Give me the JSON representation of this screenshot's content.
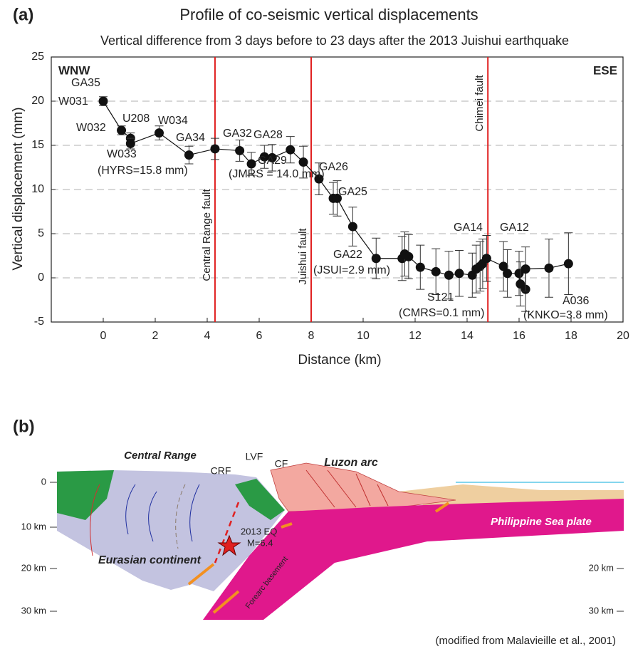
{
  "panel_labels": [
    "(a)",
    "(b)"
  ],
  "chart_data": {
    "type": "scatter-line",
    "title": "Profile of co-seismic vertical displacements",
    "subtitle": "Vertical difference from 3 days before to 23 days after the 2013 Juishui earthquake",
    "x_label": "Distance (km)",
    "y_label": "Vertical displacement (mm)",
    "xlim": [
      -2,
      20
    ],
    "ylim": [
      -5,
      25
    ],
    "xticks": [
      0,
      2,
      4,
      6,
      8,
      10,
      12,
      14,
      16,
      18,
      20
    ],
    "yticks": [
      -5,
      0,
      5,
      10,
      15,
      20,
      25
    ],
    "grid": true,
    "corner_labels": [
      "WNW",
      "ESE"
    ],
    "faults": [
      {
        "x": 4.3,
        "label": "Central Range fault"
      },
      {
        "x": 8.0,
        "label": "Juishui fault"
      },
      {
        "x": 14.8,
        "label": "Chimei fault"
      }
    ],
    "fault_color": "#e02020",
    "series": [
      {
        "color": "#111111",
        "x": [
          0,
          0.7,
          1.05,
          1.05,
          2.15,
          3.3,
          4.3,
          5.25,
          5.7,
          6.2,
          6.5,
          7.2,
          7.7,
          8.3,
          8.85,
          9.0,
          9.6,
          10.5,
          11.5,
          11.6,
          11.75,
          12.2,
          12.8,
          13.3,
          13.7,
          14.2,
          14.35,
          14.5,
          14.6,
          14.75,
          15.4,
          15.55,
          16.0,
          16.05,
          16.25,
          16.25,
          17.15,
          17.9
        ],
        "values": [
          20.0,
          16.7,
          15.8,
          15.2,
          16.4,
          13.9,
          14.6,
          14.4,
          12.9,
          13.7,
          13.6,
          14.5,
          13.1,
          11.2,
          9.0,
          9.0,
          5.8,
          2.2,
          2.2,
          2.7,
          2.4,
          1.2,
          0.7,
          0.3,
          0.5,
          0.3,
          1.0,
          1.3,
          1.6,
          2.2,
          1.3,
          0.5,
          0.5,
          -0.7,
          -1.3,
          1.0,
          1.1,
          1.6
        ],
        "errors": [
          0.5,
          0.5,
          0.6,
          0.6,
          0.8,
          1.0,
          1.2,
          1.2,
          1.3,
          1.3,
          1.5,
          1.5,
          1.8,
          1.8,
          1.8,
          2.0,
          2.2,
          2.3,
          2.5,
          2.5,
          2.5,
          2.5,
          2.6,
          2.7,
          2.6,
          2.5,
          2.7,
          2.8,
          2.8,
          2.6,
          2.8,
          2.7,
          2.5,
          2.5,
          2.5,
          2.5,
          3.3,
          3.5
        ]
      }
    ],
    "annotations": [
      "GA35",
      "W031",
      "W032",
      "U208",
      "W034",
      "W033",
      "(HYRS=15.8 mm)",
      "GA34",
      "GA32",
      "GA28",
      "GA29",
      "(JMRS = 14.0 mm)",
      "GA26",
      "GA25",
      "GA22",
      "(JSUI=2.9 mm)",
      "S121",
      "(CMRS=0.1 mm)",
      "GA14",
      "GA12",
      "A036",
      "(KNKO=3.8 mm)"
    ]
  },
  "diagram": {
    "labels": [
      "Central Range",
      "CRF",
      "LVF",
      "CF",
      "Luzon arc",
      "Philippine Sea plate",
      "Eurasian continent",
      "2013 EQ",
      "M=6.4",
      "Forearc basement"
    ],
    "depth_left": [
      "0",
      "10 km",
      "20 km",
      "30 km"
    ],
    "depth_right": [
      "20 km",
      "30 km"
    ],
    "caption": "(modified from Malavieille et al., 2001)"
  }
}
